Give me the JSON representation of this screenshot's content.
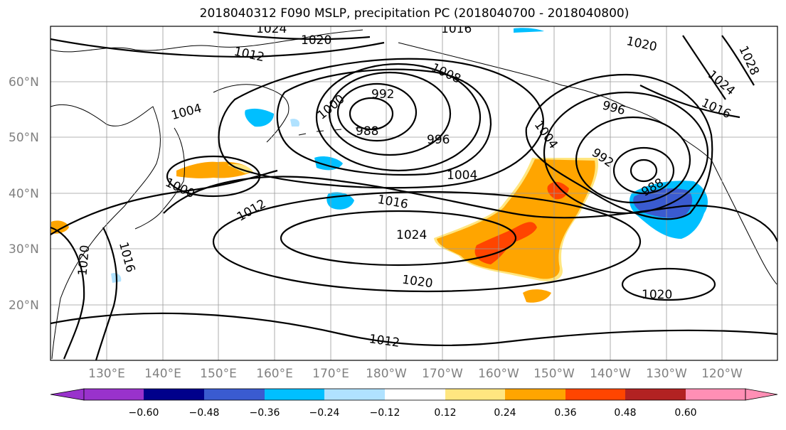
{
  "title": "2018040312 F090 MSLP, precipitation PC (2018040700 - 2018040800)",
  "map": {
    "lat_labels": [
      "60°N",
      "50°N",
      "40°N",
      "30°N",
      "20°N"
    ],
    "lon_labels": [
      "130°E",
      "140°E",
      "150°E",
      "160°E",
      "170°E",
      "180°W",
      "170°W",
      "160°W",
      "150°W",
      "140°W",
      "130°W",
      "120°W"
    ],
    "lat_range": [
      10,
      70
    ],
    "lon_range": [
      120,
      250
    ],
    "mslp_labels": [
      "1024",
      "1020",
      "1016",
      "1012",
      "1008",
      "1004",
      "1000",
      "992",
      "988",
      "996",
      "1004",
      "1000",
      "1012",
      "1016",
      "1024",
      "1020",
      "1020",
      "1016",
      "1020",
      "1012",
      "1020",
      "1028",
      "1024",
      "1016",
      "996",
      "992",
      "988",
      "1004",
      "1020"
    ]
  },
  "colorbar": {
    "ticks": [
      "−0.60",
      "−0.48",
      "−0.36",
      "−0.24",
      "−0.12",
      "0.12",
      "0.24",
      "0.36",
      "0.48",
      "0.60"
    ],
    "colors": [
      "#9932cc",
      "#00008b",
      "#3a5bd0",
      "#00bfff",
      "#b0e2ff",
      "#ffffff",
      "#ffe680",
      "#ffa500",
      "#ff4500",
      "#b22222",
      "#ff8fb5"
    ]
  },
  "precip_colors": {
    "orange": "#ffa500",
    "light_yellow": "#ffe680",
    "red_orange": "#ff4500",
    "deep_sky_blue": "#00bfff",
    "royal_blue": "#3a5bd0"
  }
}
